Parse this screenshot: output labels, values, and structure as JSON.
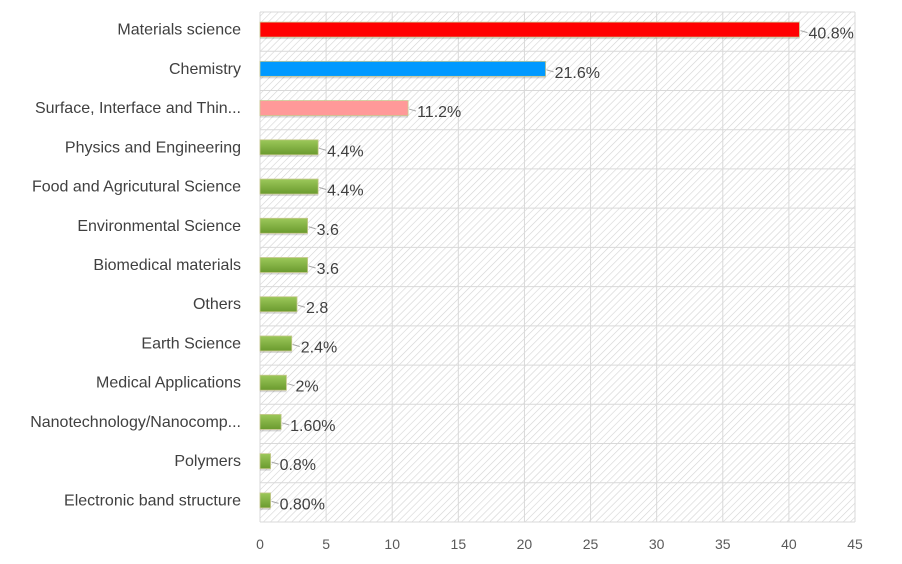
{
  "chart_data": {
    "type": "bar",
    "orientation": "horizontal",
    "title": "",
    "xlabel": "",
    "ylabel": "",
    "xlim": [
      0,
      45
    ],
    "x_ticks": [
      "0",
      "5",
      "10",
      "15",
      "20",
      "25",
      "30",
      "35",
      "40",
      "45"
    ],
    "grid": true,
    "background": "diagonal-hatch",
    "categories": [
      "Materials science",
      "Chemistry",
      "Surface, Interface and Thin...",
      "Physics and Engineering",
      "Food and Agricutural Science",
      "Environmental Science",
      "Biomedical materials",
      "Others",
      "Earth Science",
      "Medical Applications",
      "Nanotechnology/Nanocomp...",
      "Polymers",
      "Electronic band structure"
    ],
    "values": [
      40.8,
      21.6,
      11.2,
      4.4,
      4.4,
      3.6,
      3.6,
      2.8,
      2.4,
      2,
      1.6,
      0.8,
      0.8
    ],
    "data_labels": [
      "40.8%",
      "21.6%",
      "11.2%",
      "4.4%",
      "4.4%",
      "3.6",
      "3.6",
      "2.8",
      "2.4%",
      "2%",
      "1.60%",
      "0.8%",
      "0.80%"
    ],
    "colors": [
      "#ff0000",
      "#0099ff",
      "#ff9999",
      "#7cad3a",
      "#7cad3a",
      "#7cad3a",
      "#7cad3a",
      "#7cad3a",
      "#7cad3a",
      "#7cad3a",
      "#7cad3a",
      "#7cad3a",
      "#7cad3a"
    ]
  }
}
